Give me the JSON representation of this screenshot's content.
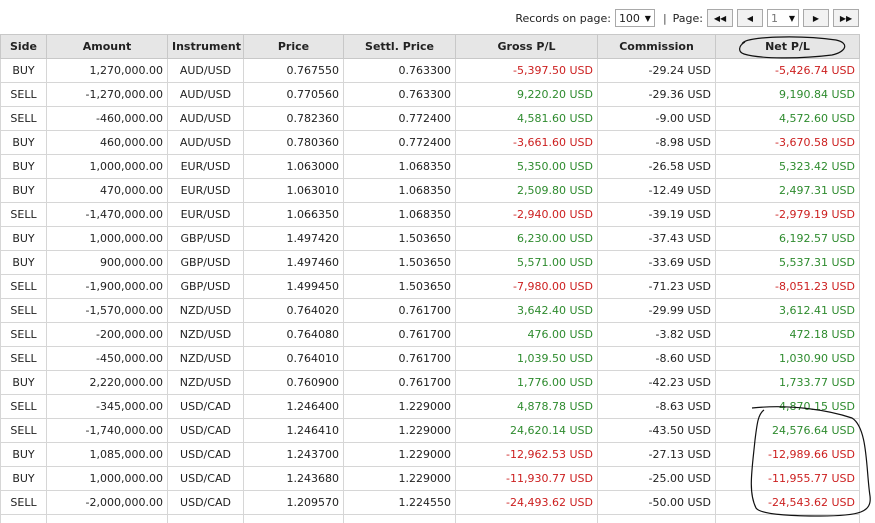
{
  "pager": {
    "records_label": "Records on page:",
    "records_value": "100",
    "separator": "|",
    "page_label": "Page:",
    "page_value": "1",
    "first_icon": "first-page-icon",
    "prev_icon": "prev-page-icon",
    "next_icon": "next-page-icon",
    "last_icon": "last-page-icon"
  },
  "columns": [
    "Side",
    "Amount",
    "Instrument",
    "Price",
    "Settl. Price",
    "Gross P/L",
    "Commission",
    "Net P/L"
  ],
  "rows": [
    {
      "side": "BUY",
      "amount": "1,270,000.00",
      "instrument": "AUD/USD",
      "price": "0.767550",
      "settl": "0.763300",
      "gross": "-5,397.50 USD",
      "commission": "-29.24 USD",
      "net": "-5,426.74 USD"
    },
    {
      "side": "SELL",
      "amount": "-1,270,000.00",
      "instrument": "AUD/USD",
      "price": "0.770560",
      "settl": "0.763300",
      "gross": "9,220.20 USD",
      "commission": "-29.36 USD",
      "net": "9,190.84 USD"
    },
    {
      "side": "SELL",
      "amount": "-460,000.00",
      "instrument": "AUD/USD",
      "price": "0.782360",
      "settl": "0.772400",
      "gross": "4,581.60 USD",
      "commission": "-9.00 USD",
      "net": "4,572.60 USD"
    },
    {
      "side": "BUY",
      "amount": "460,000.00",
      "instrument": "AUD/USD",
      "price": "0.780360",
      "settl": "0.772400",
      "gross": "-3,661.60 USD",
      "commission": "-8.98 USD",
      "net": "-3,670.58 USD"
    },
    {
      "side": "BUY",
      "amount": "1,000,000.00",
      "instrument": "EUR/USD",
      "price": "1.063000",
      "settl": "1.068350",
      "gross": "5,350.00 USD",
      "commission": "-26.58 USD",
      "net": "5,323.42 USD"
    },
    {
      "side": "BUY",
      "amount": "470,000.00",
      "instrument": "EUR/USD",
      "price": "1.063010",
      "settl": "1.068350",
      "gross": "2,509.80 USD",
      "commission": "-12.49 USD",
      "net": "2,497.31 USD"
    },
    {
      "side": "SELL",
      "amount": "-1,470,000.00",
      "instrument": "EUR/USD",
      "price": "1.066350",
      "settl": "1.068350",
      "gross": "-2,940.00 USD",
      "commission": "-39.19 USD",
      "net": "-2,979.19 USD"
    },
    {
      "side": "BUY",
      "amount": "1,000,000.00",
      "instrument": "GBP/USD",
      "price": "1.497420",
      "settl": "1.503650",
      "gross": "6,230.00 USD",
      "commission": "-37.43 USD",
      "net": "6,192.57 USD"
    },
    {
      "side": "BUY",
      "amount": "900,000.00",
      "instrument": "GBP/USD",
      "price": "1.497460",
      "settl": "1.503650",
      "gross": "5,571.00 USD",
      "commission": "-33.69 USD",
      "net": "5,537.31 USD"
    },
    {
      "side": "SELL",
      "amount": "-1,900,000.00",
      "instrument": "GBP/USD",
      "price": "1.499450",
      "settl": "1.503650",
      "gross": "-7,980.00 USD",
      "commission": "-71.23 USD",
      "net": "-8,051.23 USD"
    },
    {
      "side": "SELL",
      "amount": "-1,570,000.00",
      "instrument": "NZD/USD",
      "price": "0.764020",
      "settl": "0.761700",
      "gross": "3,642.40 USD",
      "commission": "-29.99 USD",
      "net": "3,612.41 USD"
    },
    {
      "side": "SELL",
      "amount": "-200,000.00",
      "instrument": "NZD/USD",
      "price": "0.764080",
      "settl": "0.761700",
      "gross": "476.00 USD",
      "commission": "-3.82 USD",
      "net": "472.18 USD"
    },
    {
      "side": "SELL",
      "amount": "-450,000.00",
      "instrument": "NZD/USD",
      "price": "0.764010",
      "settl": "0.761700",
      "gross": "1,039.50 USD",
      "commission": "-8.60 USD",
      "net": "1,030.90 USD"
    },
    {
      "side": "BUY",
      "amount": "2,220,000.00",
      "instrument": "NZD/USD",
      "price": "0.760900",
      "settl": "0.761700",
      "gross": "1,776.00 USD",
      "commission": "-42.23 USD",
      "net": "1,733.77 USD"
    },
    {
      "side": "SELL",
      "amount": "-345,000.00",
      "instrument": "USD/CAD",
      "price": "1.246400",
      "settl": "1.229000",
      "gross": "4,878.78 USD",
      "commission": "-8.63 USD",
      "net": "4,870.15 USD"
    },
    {
      "side": "SELL",
      "amount": "-1,740,000.00",
      "instrument": "USD/CAD",
      "price": "1.246410",
      "settl": "1.229000",
      "gross": "24,620.14 USD",
      "commission": "-43.50 USD",
      "net": "24,576.64 USD"
    },
    {
      "side": "BUY",
      "amount": "1,085,000.00",
      "instrument": "USD/CAD",
      "price": "1.243700",
      "settl": "1.229000",
      "gross": "-12,962.53 USD",
      "commission": "-27.13 USD",
      "net": "-12,989.66 USD"
    },
    {
      "side": "BUY",
      "amount": "1,000,000.00",
      "instrument": "USD/CAD",
      "price": "1.243680",
      "settl": "1.229000",
      "gross": "-11,930.77 USD",
      "commission": "-25.00 USD",
      "net": "-11,955.77 USD"
    },
    {
      "side": "SELL",
      "amount": "-2,000,000.00",
      "instrument": "USD/CAD",
      "price": "1.209570",
      "settl": "1.224550",
      "gross": "-24,493.62 USD",
      "commission": "-50.00 USD",
      "net": "-24,543.62 USD"
    }
  ],
  "colors": {
    "negative": "#cc1f1f",
    "positive": "#2e8b2e",
    "header_bg": "#e6e6e6",
    "annotation": "#111111"
  }
}
